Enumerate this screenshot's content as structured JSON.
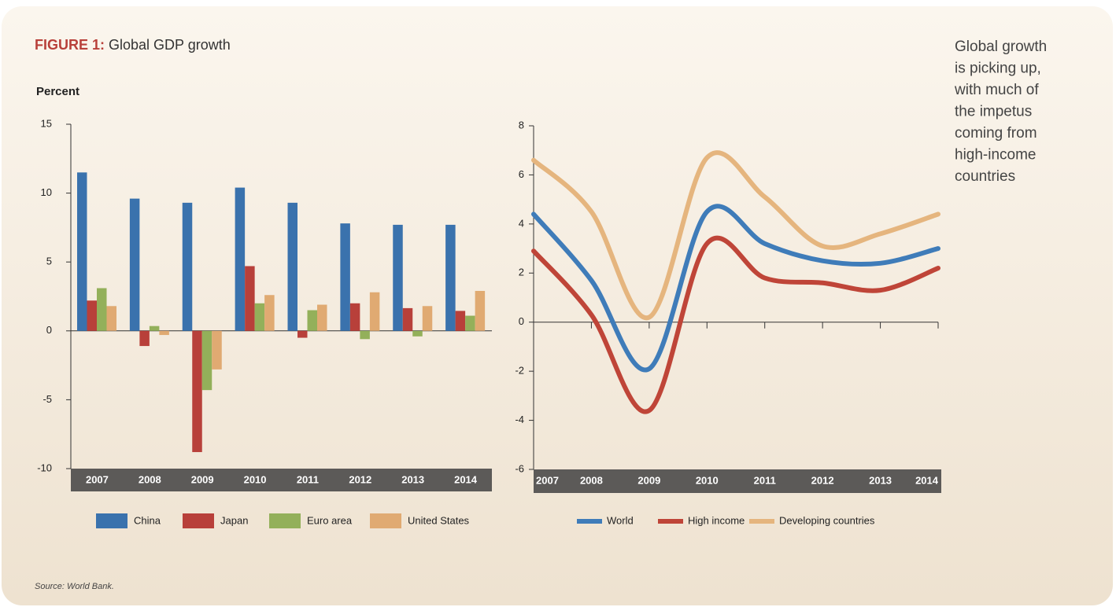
{
  "figure": {
    "label": "FIGURE 1:",
    "title": "Global GDP growth"
  },
  "note": [
    "Global growth",
    "is picking up,",
    "with much of",
    "the impetus",
    "coming from",
    "high-income",
    "countries"
  ],
  "source": "Source: World Bank.",
  "chart_data": [
    {
      "type": "bar",
      "y_label": "Percent",
      "categories": [
        "2007",
        "2008",
        "2009",
        "2010",
        "2011",
        "2012",
        "2013",
        "2014"
      ],
      "series": [
        {
          "name": "China",
          "color": "#3a72ad",
          "values": [
            11.5,
            9.6,
            9.3,
            10.4,
            9.3,
            7.8,
            7.7,
            7.7
          ]
        },
        {
          "name": "Japan",
          "color": "#b8403a",
          "values": [
            2.2,
            -1.1,
            -8.8,
            4.7,
            -0.5,
            2.0,
            1.65,
            1.45
          ]
        },
        {
          "name": "Euro area",
          "color": "#93b05a",
          "values": [
            3.1,
            0.35,
            -4.3,
            2.0,
            1.5,
            -0.6,
            -0.4,
            1.1
          ]
        },
        {
          "name": "United States",
          "color": "#e0aa72",
          "values": [
            1.8,
            -0.3,
            -2.8,
            2.6,
            1.9,
            2.8,
            1.8,
            2.9
          ]
        }
      ],
      "ylim": [
        -10,
        15
      ],
      "yticks": [
        -10,
        -5,
        0,
        5,
        10,
        15
      ],
      "grid": false
    },
    {
      "type": "line",
      "categories": [
        "2007",
        "2008",
        "2009",
        "2010",
        "2011",
        "2012",
        "2013",
        "2014"
      ],
      "series": [
        {
          "name": "World",
          "color": "#3f7cb9",
          "values": [
            4.4,
            1.7,
            -1.9,
            4.5,
            3.2,
            2.5,
            2.4,
            3.0
          ]
        },
        {
          "name": "High income",
          "color": "#bf4538",
          "values": [
            2.9,
            0.3,
            -3.6,
            3.2,
            1.8,
            1.6,
            1.3,
            2.2
          ]
        },
        {
          "name": "Developing countries",
          "color": "#e5b57e",
          "values": [
            6.6,
            4.5,
            0.2,
            6.7,
            5.1,
            3.1,
            3.6,
            4.4
          ]
        }
      ],
      "ylim": [
        -6,
        8
      ],
      "yticks": [
        -6,
        -4,
        -2,
        0,
        2,
        4,
        6,
        8
      ],
      "grid": false
    }
  ]
}
